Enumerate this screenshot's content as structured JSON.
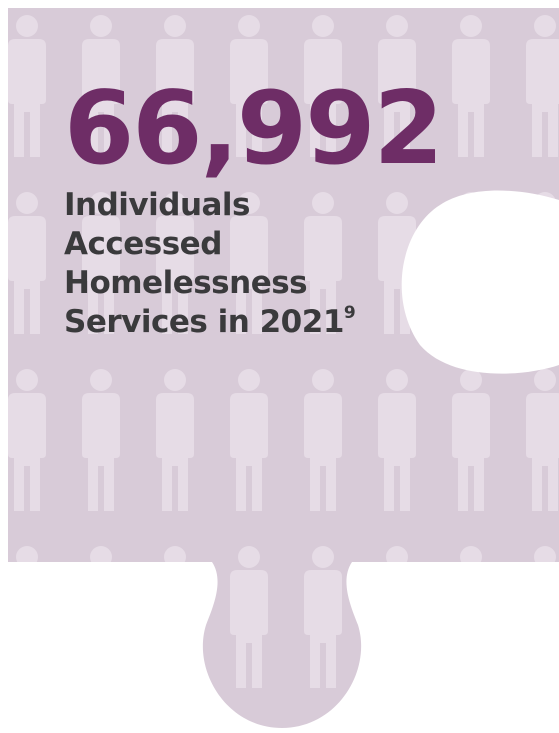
{
  "infographic": {
    "number": "66,992",
    "caption_lines": [
      "Individuals",
      "Accessed",
      "Homelessness",
      "Services in 2021"
    ],
    "footnote_marker": "9",
    "puzzle_icon": "person-silhouette-icon"
  },
  "colors": {
    "puzzle_fill": "#d8cbd8",
    "silhouette": "#e6dce6",
    "number": "#6e2d66",
    "caption": "#3a3a3c"
  }
}
